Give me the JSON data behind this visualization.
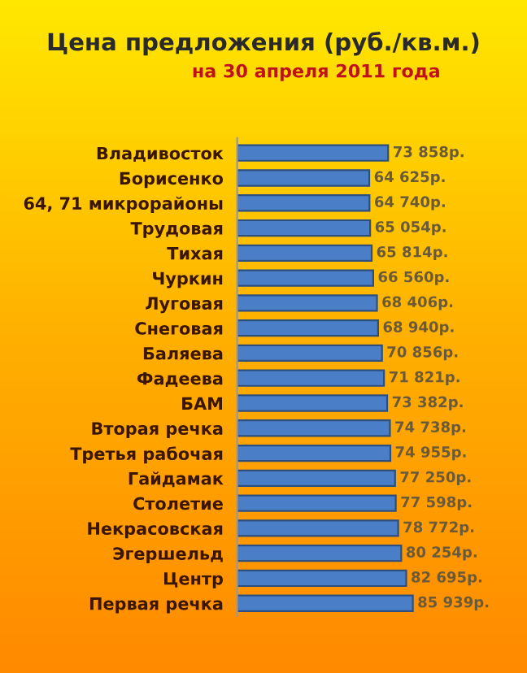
{
  "chart_data": {
    "type": "bar",
    "orientation": "horizontal",
    "title": "Цена предложения (руб./кв.м.)",
    "subtitle": "на 30 апреля 2011 года",
    "categories": [
      "Владивосток",
      "Борисенко",
      "64, 71 микрорайоны",
      "Трудовая",
      "Тихая",
      "Чуркин",
      "Луговая",
      "Снеговая",
      "Баляева",
      "Фадеева",
      "БАМ",
      "Вторая речка",
      "Третья рабочая",
      "Гайдамак",
      "Столетие",
      "Некрасовская",
      "Эгершельд",
      "Центр",
      "Первая речка"
    ],
    "values": [
      73858,
      64625,
      64740,
      65054,
      65814,
      66560,
      68406,
      68940,
      70856,
      71821,
      73382,
      74738,
      74955,
      77250,
      77598,
      78772,
      80254,
      82695,
      85939
    ],
    "value_labels": [
      "73 858р.",
      "64 625р.",
      "64 740р.",
      "65 054р.",
      "65 814р.",
      "66 560р.",
      "68 406р.",
      "68 940р.",
      "70 856р.",
      "71 821р.",
      "73 382р.",
      "74 738р.",
      "74 955р.",
      "77 250р.",
      "77 598р.",
      "78 772р.",
      "80 254р.",
      "82 695р.",
      "85 939р."
    ],
    "color": "#4a7fc8",
    "legend": false,
    "grid": false
  }
}
